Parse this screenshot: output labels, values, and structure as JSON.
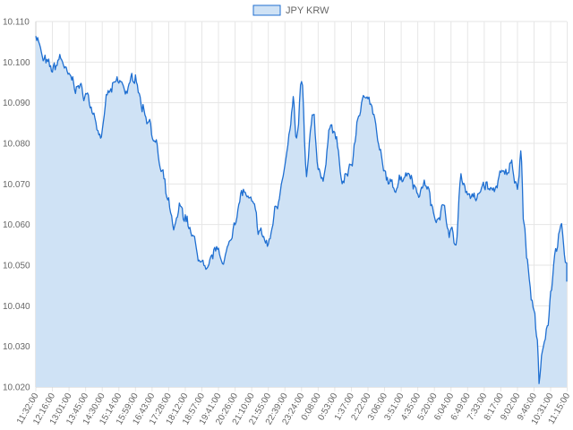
{
  "chart_data": {
    "type": "area",
    "legend": {
      "label": "JPY KRW",
      "position": "top"
    },
    "colors": {
      "line": "#1f6fd1",
      "fill": "#cfe2f5",
      "legend_fill": "#cfe2f5"
    },
    "grid": true,
    "ylim": [
      10.02,
      10.11
    ],
    "y_ticks": [
      "10.020",
      "10.030",
      "10.040",
      "10.050",
      "10.060",
      "10.070",
      "10.080",
      "10.090",
      "10.100",
      "10.110"
    ],
    "x_ticks": [
      "11:32:00",
      "12:16:00",
      "13:01:00",
      "13:45:00",
      "14:30:00",
      "15:14:00",
      "15:59:00",
      "16:43:00",
      "17:28:00",
      "18:12:00",
      "18:57:00",
      "19:41:00",
      "20:26:00",
      "21:10:00",
      "21:55:00",
      "22:39:00",
      "23:24:00",
      "0:08:00",
      "0:53:00",
      "1:37:00",
      "2:22:00",
      "3:06:00",
      "3:51:00",
      "4:35:00",
      "5:20:00",
      "6:04:00",
      "6:49:00",
      "7:33:00",
      "8:17:00",
      "9:02:00",
      "9:46:00",
      "10:31:00",
      "11:15:00"
    ],
    "series": [
      {
        "name": "JPY KRW",
        "anchors": [
          [
            0,
            10.107
          ],
          [
            0.5,
            10.1
          ],
          [
            1,
            10.098
          ],
          [
            1.5,
            10.101
          ],
          [
            2,
            10.096
          ],
          [
            2.5,
            10.094
          ],
          [
            3,
            10.092
          ],
          [
            3.5,
            10.088
          ],
          [
            3.8,
            10.083
          ],
          [
            4,
            10.082
          ],
          [
            4.3,
            10.092
          ],
          [
            5,
            10.095
          ],
          [
            5.5,
            10.093
          ],
          [
            6,
            10.097
          ],
          [
            6.4,
            10.089
          ],
          [
            6.8,
            10.086
          ],
          [
            7.2,
            10.08
          ],
          [
            7.6,
            10.072
          ],
          [
            8,
            10.065
          ],
          [
            8.3,
            10.058
          ],
          [
            8.7,
            10.064
          ],
          [
            9,
            10.062
          ],
          [
            9.5,
            10.056
          ],
          [
            10,
            10.05
          ],
          [
            10.3,
            10.047
          ],
          [
            10.6,
            10.052
          ],
          [
            11,
            10.055
          ],
          [
            11.3,
            10.05
          ],
          [
            11.7,
            10.056
          ],
          [
            12,
            10.062
          ],
          [
            12.5,
            10.068
          ],
          [
            13,
            10.065
          ],
          [
            13.5,
            10.058
          ],
          [
            14,
            10.055
          ],
          [
            14.5,
            10.065
          ],
          [
            15,
            10.075
          ],
          [
            15.3,
            10.082
          ],
          [
            15.5,
            10.09
          ],
          [
            15.7,
            10.08
          ],
          [
            16,
            10.095
          ],
          [
            16.3,
            10.072
          ],
          [
            16.7,
            10.088
          ],
          [
            17,
            10.075
          ],
          [
            17.3,
            10.07
          ],
          [
            17.7,
            10.085
          ],
          [
            18,
            10.082
          ],
          [
            18.5,
            10.07
          ],
          [
            19,
            10.075
          ],
          [
            19.5,
            10.088
          ],
          [
            20,
            10.093
          ],
          [
            20.3,
            10.088
          ],
          [
            20.7,
            10.078
          ],
          [
            21,
            10.072
          ],
          [
            21.5,
            10.069
          ],
          [
            22,
            10.072
          ],
          [
            22.5,
            10.073
          ],
          [
            23,
            10.068
          ],
          [
            23.5,
            10.07
          ],
          [
            24,
            10.062
          ],
          [
            24.5,
            10.064
          ],
          [
            25,
            10.058
          ],
          [
            25.3,
            10.055
          ],
          [
            25.6,
            10.072
          ],
          [
            26,
            10.068
          ],
          [
            26.5,
            10.066
          ],
          [
            27,
            10.07
          ],
          [
            27.5,
            10.068
          ],
          [
            28,
            10.072
          ],
          [
            28.3,
            10.072
          ],
          [
            28.6,
            10.075
          ],
          [
            29,
            10.07
          ],
          [
            29.2,
            10.078
          ],
          [
            29.4,
            10.06
          ],
          [
            29.6,
            10.05
          ],
          [
            30,
            10.038
          ],
          [
            30.2,
            10.03
          ],
          [
            30.3,
            10.021
          ],
          [
            30.5,
            10.03
          ],
          [
            30.8,
            10.035
          ],
          [
            31,
            10.042
          ],
          [
            31.3,
            10.052
          ],
          [
            31.6,
            10.059
          ],
          [
            32,
            10.05
          ],
          [
            32.5,
            10.047
          ]
        ]
      }
    ]
  }
}
